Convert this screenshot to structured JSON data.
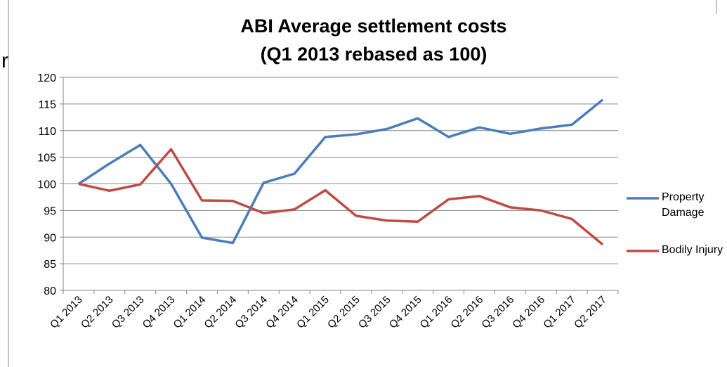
{
  "page_fragment": "r",
  "chart_data": {
    "type": "line",
    "title": "ABI Average settlement costs",
    "subtitle": "(Q1 2013 rebased as 100)",
    "categories": [
      "Q1 2013",
      "Q2 2013",
      "Q3 2013",
      "Q4 2013",
      "Q1 2014",
      "Q2 2014",
      "Q3 2014",
      "Q4 2014",
      "Q1 2015",
      "Q2 2015",
      "Q3 2015",
      "Q4 2015",
      "Q1 2016",
      "Q2 2016",
      "Q3 2016",
      "Q4 2016",
      "Q1 2017",
      "Q2 2017"
    ],
    "series": [
      {
        "name": "Property Damage",
        "color": "#4a7ebb",
        "values": [
          100,
          103.8,
          107.3,
          100,
          89.9,
          88.9,
          100.2,
          101.9,
          108.8,
          109.3,
          110.3,
          112.3,
          108.8,
          110.6,
          109.4,
          110.4,
          111.1,
          115.8
        ]
      },
      {
        "name": "Bodily Injury",
        "color": "#be4b48",
        "values": [
          100,
          98.7,
          99.9,
          106.5,
          96.9,
          96.8,
          94.5,
          95.2,
          98.8,
          94.0,
          93.1,
          92.9,
          97.1,
          97.7,
          95.6,
          95.0,
          93.4,
          88.6
        ]
      }
    ],
    "ylim": [
      80,
      120
    ],
    "yticks": [
      80,
      85,
      90,
      95,
      100,
      105,
      110,
      115,
      120
    ],
    "grid": true,
    "legend": "right"
  }
}
